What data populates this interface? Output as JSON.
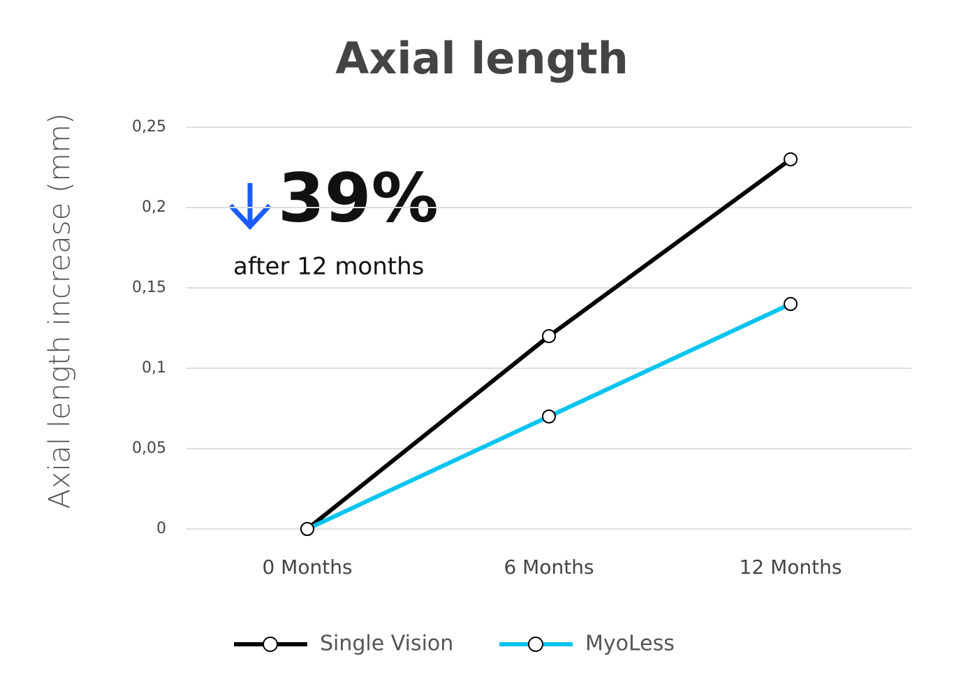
{
  "chart_data": {
    "type": "line",
    "title": "Axial length",
    "y_label": "Axial length increase (mm)",
    "annotation": {
      "headline": "39%",
      "text": "after 12 months"
    },
    "categories": [
      "0 Months",
      "6 Months",
      "12 Months"
    ],
    "series": [
      {
        "name": "Single Vision",
        "color": "#000000",
        "values": [
          0,
          0.12,
          0.23
        ]
      },
      {
        "name": "MyoLess",
        "color": "#00c4f0",
        "values": [
          0,
          0.07,
          0.14
        ]
      }
    ],
    "ylim": [
      0,
      0.25
    ],
    "yticks": [
      0,
      {
        "value": 0.05,
        "label": "0,05"
      },
      {
        "value": 0.1,
        "label": "0,1"
      },
      {
        "value": 0.15,
        "label": "0,15"
      },
      {
        "value": 0.2,
        "label": "0,2"
      },
      {
        "value": 0.25,
        "label": "0,25"
      }
    ],
    "grid": true,
    "legend": "bottom"
  }
}
